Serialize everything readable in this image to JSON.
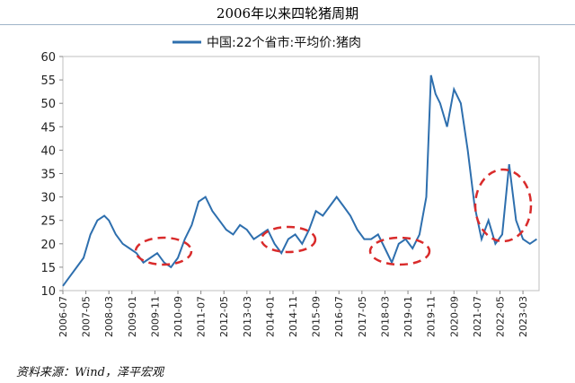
{
  "page": {
    "title": "2006年以来四轮猪周期",
    "source": "资料来源：Wind，泽平宏观"
  },
  "colors": {
    "line": "#2e6fae",
    "highlight": "#d92b2b",
    "grid": "#d9d9d9"
  },
  "chart_data": {
    "type": "line",
    "legend": "中国:22个省市:平均价:猪肉",
    "legend_position": "top",
    "ylim": [
      10,
      60
    ],
    "yticks": [
      10,
      15,
      20,
      25,
      30,
      35,
      40,
      45,
      50,
      55,
      60
    ],
    "xticks": [
      "2006-07",
      "2007-05",
      "2008-03",
      "2009-01",
      "2009-11",
      "2010-09",
      "2011-07",
      "2012-05",
      "2013-03",
      "2014-01",
      "2014-11",
      "2015-09",
      "2016-07",
      "2017-05",
      "2018-03",
      "2019-01",
      "2019-11",
      "2020-09",
      "2021-07",
      "2022-05",
      "2023-03"
    ],
    "series": [
      {
        "name": "中国:22个省市:平均价:猪肉",
        "x": [
          "2006-07",
          "2006-10",
          "2007-01",
          "2007-04",
          "2007-07",
          "2007-10",
          "2008-01",
          "2008-03",
          "2008-06",
          "2008-09",
          "2008-12",
          "2009-03",
          "2009-06",
          "2009-09",
          "2009-12",
          "2010-03",
          "2010-06",
          "2010-09",
          "2010-12",
          "2011-03",
          "2011-06",
          "2011-09",
          "2011-12",
          "2012-03",
          "2012-06",
          "2012-09",
          "2012-12",
          "2013-03",
          "2013-06",
          "2013-09",
          "2013-12",
          "2014-03",
          "2014-06",
          "2014-09",
          "2014-12",
          "2015-03",
          "2015-06",
          "2015-09",
          "2015-12",
          "2016-03",
          "2016-06",
          "2016-09",
          "2016-12",
          "2017-03",
          "2017-06",
          "2017-09",
          "2017-12",
          "2018-03",
          "2018-06",
          "2018-09",
          "2018-12",
          "2019-03",
          "2019-06",
          "2019-09",
          "2019-11",
          "2020-01",
          "2020-03",
          "2020-06",
          "2020-09",
          "2020-12",
          "2021-03",
          "2021-06",
          "2021-09",
          "2021-12",
          "2022-03",
          "2022-06",
          "2022-09",
          "2022-12",
          "2023-03",
          "2023-06",
          "2023-09"
        ],
        "values": [
          11,
          13,
          15,
          17,
          22,
          25,
          26,
          25,
          22,
          20,
          19,
          18,
          16,
          17,
          18,
          16,
          15,
          17,
          21,
          24,
          29,
          30,
          27,
          25,
          23,
          22,
          24,
          23,
          21,
          22,
          23,
          20,
          18,
          21,
          22,
          20,
          23,
          27,
          26,
          28,
          30,
          28,
          26,
          23,
          21,
          21,
          22,
          19,
          16,
          20,
          21,
          19,
          22,
          30,
          56,
          52,
          50,
          45,
          53,
          50,
          40,
          28,
          21,
          25,
          20,
          22,
          37,
          25,
          21,
          20,
          21
        ]
      }
    ]
  }
}
